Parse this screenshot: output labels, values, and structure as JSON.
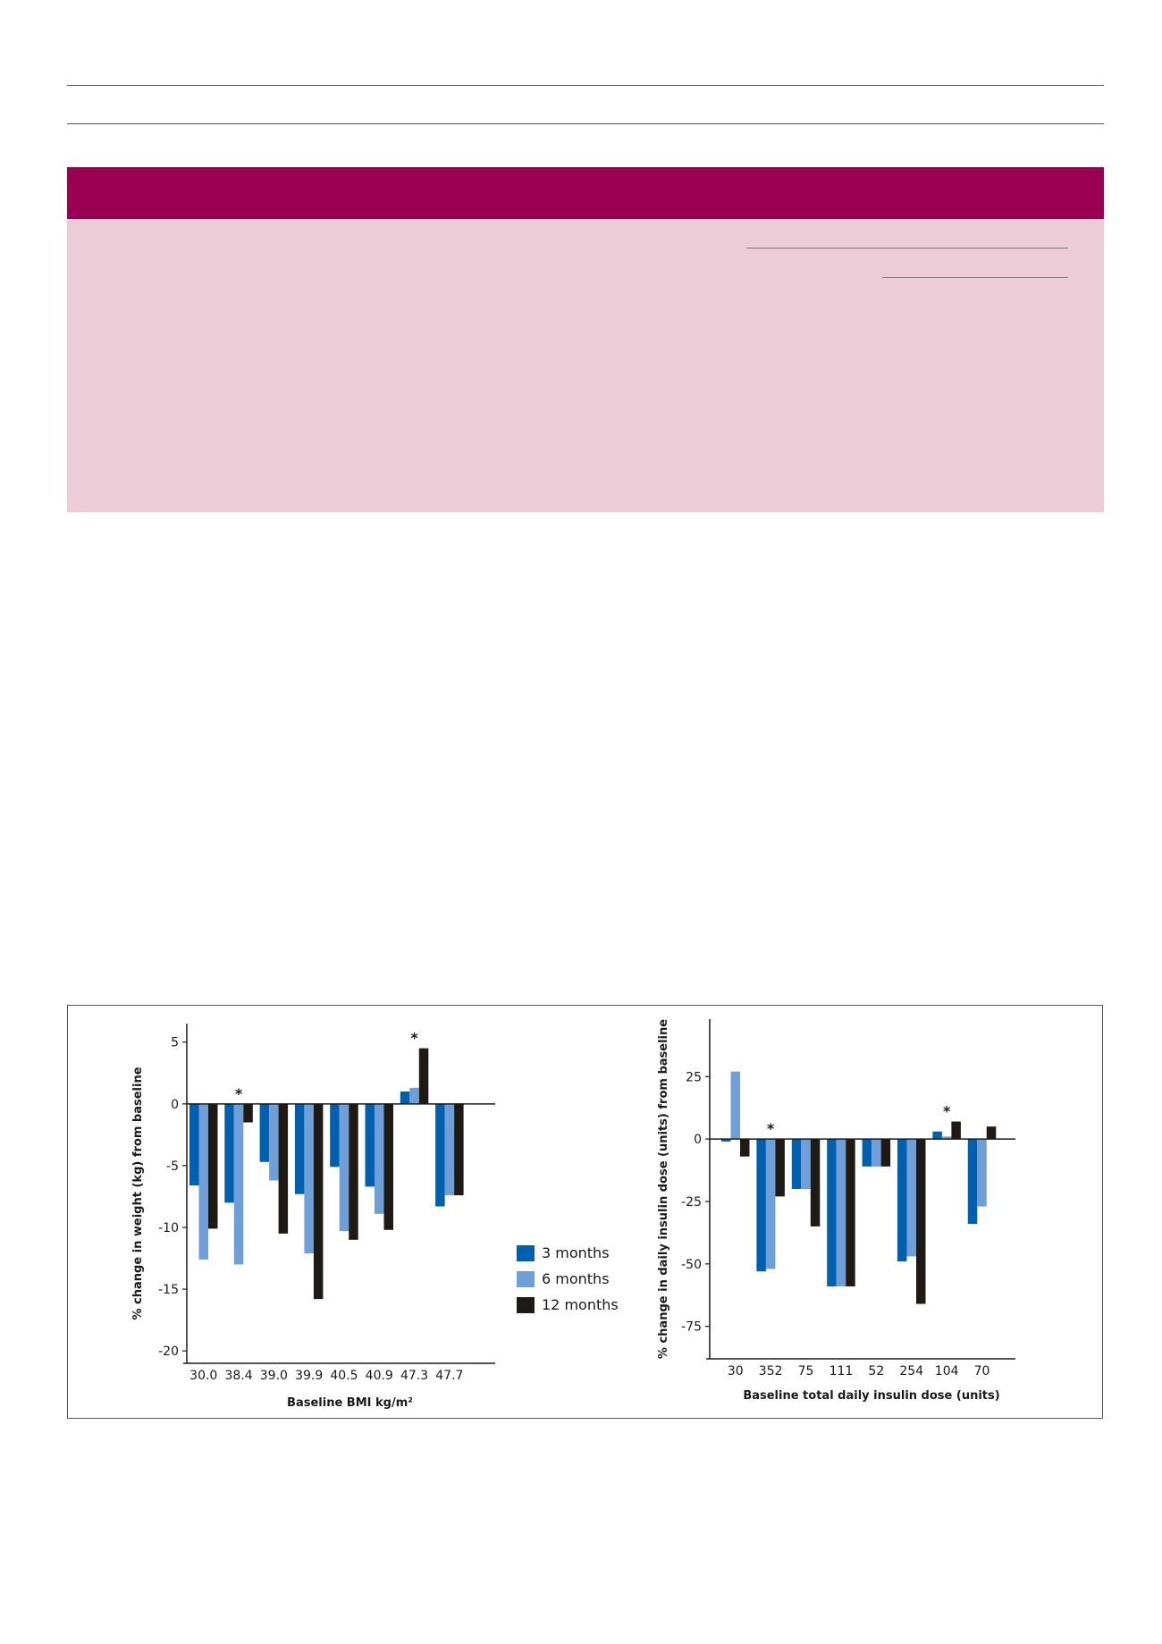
{
  "colors": {
    "header_band": "#9b0052",
    "table_body": "#ecccd6",
    "series_3_months": "#0060b0",
    "series_6_months": "#6f9fd8",
    "series_12_months": "#1f1a14"
  },
  "legend": {
    "items": [
      {
        "label": "3 months",
        "color": "#0060b0"
      },
      {
        "label": "6 months",
        "color": "#6f9fd8"
      },
      {
        "label": "12 months",
        "color": "#1f1a14"
      }
    ]
  },
  "chart_data": [
    {
      "type": "bar",
      "xlabel": "Baseline BMI kg/m²",
      "ylabel": "% change in weight (kg) from baseline",
      "ylim": [
        -21,
        6.5
      ],
      "yticks": [
        5,
        0,
        -5,
        -10,
        -15,
        -20
      ],
      "categories": [
        "30.0",
        "38.4",
        "39.0",
        "39.9",
        "40.5",
        "40.9",
        "47.3",
        "47.7"
      ],
      "series": [
        {
          "name": "3 months",
          "values": [
            -6.6,
            -8.0,
            -4.7,
            -7.3,
            -5.1,
            -6.7,
            1.0,
            -8.3
          ]
        },
        {
          "name": "6 months",
          "values": [
            -12.6,
            -13.0,
            -6.2,
            -12.1,
            -10.3,
            -8.9,
            1.3,
            -7.4
          ]
        },
        {
          "name": "12 months",
          "values": [
            -10.1,
            -1.5,
            -10.5,
            -15.8,
            -11.0,
            -10.2,
            4.5,
            -7.4
          ]
        }
      ],
      "annotations": [
        {
          "category": "38.4",
          "text": "*"
        },
        {
          "category": "47.3",
          "text": "*"
        }
      ],
      "legend": "right",
      "grid": false
    },
    {
      "type": "bar",
      "xlabel": "Baseline total daily insulin dose (units)",
      "ylabel": "% change in daily insulin dose (units) from baseline",
      "ylim": [
        -88,
        48
      ],
      "yticks": [
        25,
        0,
        -25,
        -50,
        -75
      ],
      "categories": [
        "30",
        "352",
        "75",
        "111",
        "52",
        "254",
        "104",
        "70"
      ],
      "series": [
        {
          "name": "3 months",
          "values": [
            -1,
            -53,
            -20,
            -59,
            -11,
            -49,
            3,
            -34
          ]
        },
        {
          "name": "6 months",
          "values": [
            27,
            -52,
            -20,
            -59,
            -11,
            -47,
            1,
            -27
          ]
        },
        {
          "name": "12 months",
          "values": [
            -7,
            -23,
            -35,
            -59,
            -11,
            -66,
            7,
            5
          ]
        }
      ],
      "annotations": [
        {
          "category": "352",
          "text": "*"
        },
        {
          "category": "104",
          "text": "*"
        }
      ],
      "grid": false
    }
  ]
}
